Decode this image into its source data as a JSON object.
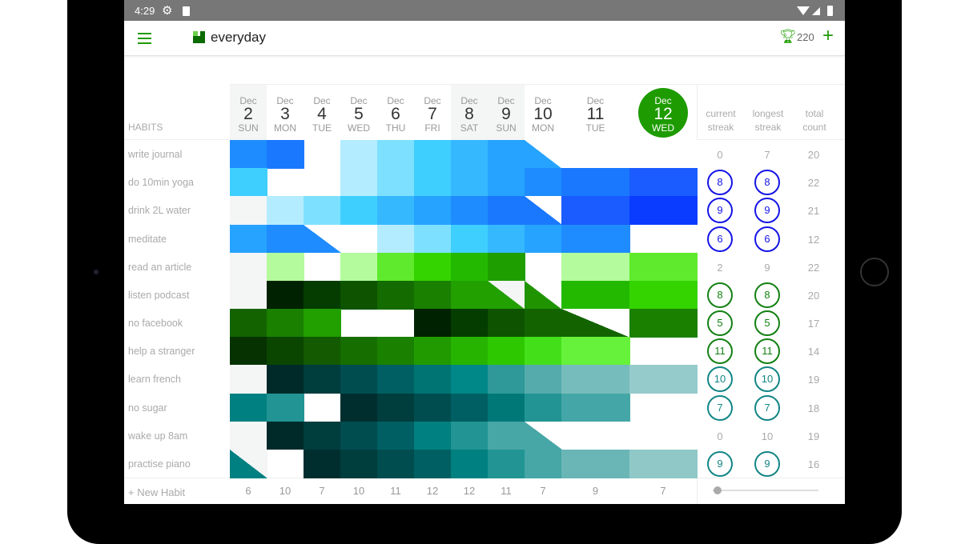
{
  "status_bar": {
    "time": "4:29"
  },
  "app": {
    "title": "everyday",
    "trophy_count": "220"
  },
  "header": {
    "habits_label": "HABITS",
    "stats": [
      [
        "current",
        "streak"
      ],
      [
        "longest",
        "streak"
      ],
      [
        "total",
        "count"
      ]
    ]
  },
  "colors": {
    "accent": "#1e9b00",
    "weekend": "#f4f5f5",
    "blue": "#1414e6",
    "green": "#128012",
    "teal": "#138585"
  },
  "days": [
    {
      "month": "Dec",
      "day": "2",
      "weekday": "SUN",
      "weekend": true
    },
    {
      "month": "Dec",
      "day": "3",
      "weekday": "MON"
    },
    {
      "month": "Dec",
      "day": "4",
      "weekday": "TUE"
    },
    {
      "month": "Dec",
      "day": "5",
      "weekday": "WED"
    },
    {
      "month": "Dec",
      "day": "6",
      "weekday": "THU"
    },
    {
      "month": "Dec",
      "day": "7",
      "weekday": "FRI"
    },
    {
      "month": "Dec",
      "day": "8",
      "weekday": "SAT",
      "weekend": true
    },
    {
      "month": "Dec",
      "day": "9",
      "weekday": "SUN",
      "weekend": true
    },
    {
      "month": "Dec",
      "day": "10",
      "weekday": "MON"
    },
    {
      "month": "Dec",
      "day": "11",
      "weekday": "TUE"
    },
    {
      "month": "Dec",
      "day": "12",
      "weekday": "WED",
      "today": true
    }
  ],
  "habits": [
    {
      "name": "write journal",
      "group": "blue",
      "current": "0",
      "longest": "7",
      "total": "20",
      "circled": false,
      "cells": [
        "#1e8cff",
        "#1a78ff",
        null,
        "#b4ecff",
        "#7ee0ff",
        "#3ecfff",
        "#36b8ff",
        "#26a3ff",
        {
          "c": "#26a3ff",
          "bg": "#fff"
        },
        null,
        null
      ]
    },
    {
      "name": "do 10min yoga",
      "group": "blue",
      "current": "8",
      "longest": "8",
      "total": "22",
      "circled": true,
      "cells": [
        "#3ecfff",
        null,
        null,
        "#b4ecff",
        "#7ee0ff",
        "#3ecfff",
        "#36b8ff",
        "#26a3ff",
        "#1e8cff",
        "#1a78ff",
        "#1a5cff"
      ]
    },
    {
      "name": "drink 2L water",
      "group": "blue",
      "current": "9",
      "longest": "9",
      "total": "21",
      "circled": true,
      "cells": [
        "#f4f5f5",
        "#b4ecff",
        "#7ee0ff",
        "#3ecfff",
        "#36b8ff",
        "#26a3ff",
        "#1e8cff",
        "#1a78ff",
        {
          "c": "#1a78ff",
          "bg": "#fff"
        },
        "#1a5cff",
        "#0a3cff"
      ]
    },
    {
      "name": "meditate",
      "group": "blue",
      "current": "6",
      "longest": "6",
      "total": "12",
      "circled": true,
      "cells": [
        "#26a3ff",
        "#1e8cff",
        {
          "c": "#1e8cff",
          "bg": "#fff"
        },
        null,
        "#b4ecff",
        "#7ee0ff",
        "#3ecfff",
        "#36b8ff",
        "#26a3ff",
        "#1e8cff",
        null
      ]
    },
    {
      "name": "read an article",
      "group": "green",
      "current": "2",
      "longest": "9",
      "total": "22",
      "circled": false,
      "cells": [
        "#f4f5f5",
        "#b3fb9c",
        null,
        "#b3fb9c",
        "#5fea2d",
        "#33d400",
        "#23b900",
        "#1f9e00",
        null,
        "#b3fb9c",
        "#5fea2d"
      ]
    },
    {
      "name": "listen podcast",
      "group": "green",
      "current": "8",
      "longest": "8",
      "total": "20",
      "circled": true,
      "cells": [
        "#f4f5f5",
        "#002200",
        "#053d00",
        "#0d5300",
        "#146b00",
        "#1a8000",
        "#21a000",
        {
          "c": "#21a000",
          "bg": "#f4f5f5"
        },
        {
          "c": "#1f9400",
          "bg": "#fff"
        },
        "#23b900",
        "#33d400"
      ]
    },
    {
      "name": "no facebook",
      "group": "green",
      "current": "5",
      "longest": "5",
      "total": "17",
      "circled": true,
      "cells": [
        "#136400",
        "#1a8000",
        "#21a000",
        null,
        null,
        "#002200",
        "#053d00",
        "#0d5300",
        "#136400",
        {
          "c": "#136400",
          "bg": "#fff"
        },
        "#1a8000"
      ]
    },
    {
      "name": "help a stranger",
      "group": "green",
      "current": "11",
      "longest": "11",
      "total": "14",
      "circled": true,
      "cells": [
        "#053200",
        "#0a4600",
        "#135a00",
        "#176e00",
        "#1a8000",
        "#219a00",
        "#27b400",
        "#2dc800",
        "#43e01a",
        "#66f23a",
        null
      ]
    },
    {
      "name": "learn french",
      "group": "teal",
      "current": "10",
      "longest": "10",
      "total": "19",
      "circled": true,
      "cells": [
        "#f4f5f5",
        "#002a2a",
        "#003d3d",
        "#004d50",
        "#005f62",
        "#007373",
        "#008888",
        "#2f9898",
        "#55abab",
        "#77bcbc",
        "#95cbcb"
      ]
    },
    {
      "name": "no sugar",
      "group": "teal",
      "current": "7",
      "longest": "7",
      "total": "18",
      "circled": true,
      "cells": [
        "#008080",
        "#229494",
        null,
        "#002e2e",
        "#003d3d",
        "#004d50",
        "#005f62",
        "#007878",
        "#229494",
        "#44a6a6",
        null
      ]
    },
    {
      "name": "wake up 8am",
      "group": "teal",
      "current": "0",
      "longest": "10",
      "total": "19",
      "circled": false,
      "cells": [
        "#f4f5f5",
        "#002a2a",
        "#003d3d",
        "#004d50",
        "#005f62",
        "#008080",
        "#229494",
        "#47a6a6",
        {
          "c": "#47a6a6",
          "bg": "#fff"
        },
        null,
        null
      ]
    },
    {
      "name": "practise piano",
      "group": "teal",
      "current": "9",
      "longest": "9",
      "total": "16",
      "circled": true,
      "cells": [
        {
          "c": "#008080",
          "bg": "#f4f5f5"
        },
        null,
        "#002e2e",
        "#003d3d",
        "#004d50",
        "#005f62",
        "#008080",
        "#229494",
        "#47a6a6",
        "#6ab6b6",
        "#90c8c8"
      ]
    }
  ],
  "footer": {
    "new_habit": "+ New Habit",
    "daily_totals": [
      "6",
      "10",
      "7",
      "10",
      "11",
      "12",
      "12",
      "11",
      "7",
      "9",
      "7"
    ]
  }
}
